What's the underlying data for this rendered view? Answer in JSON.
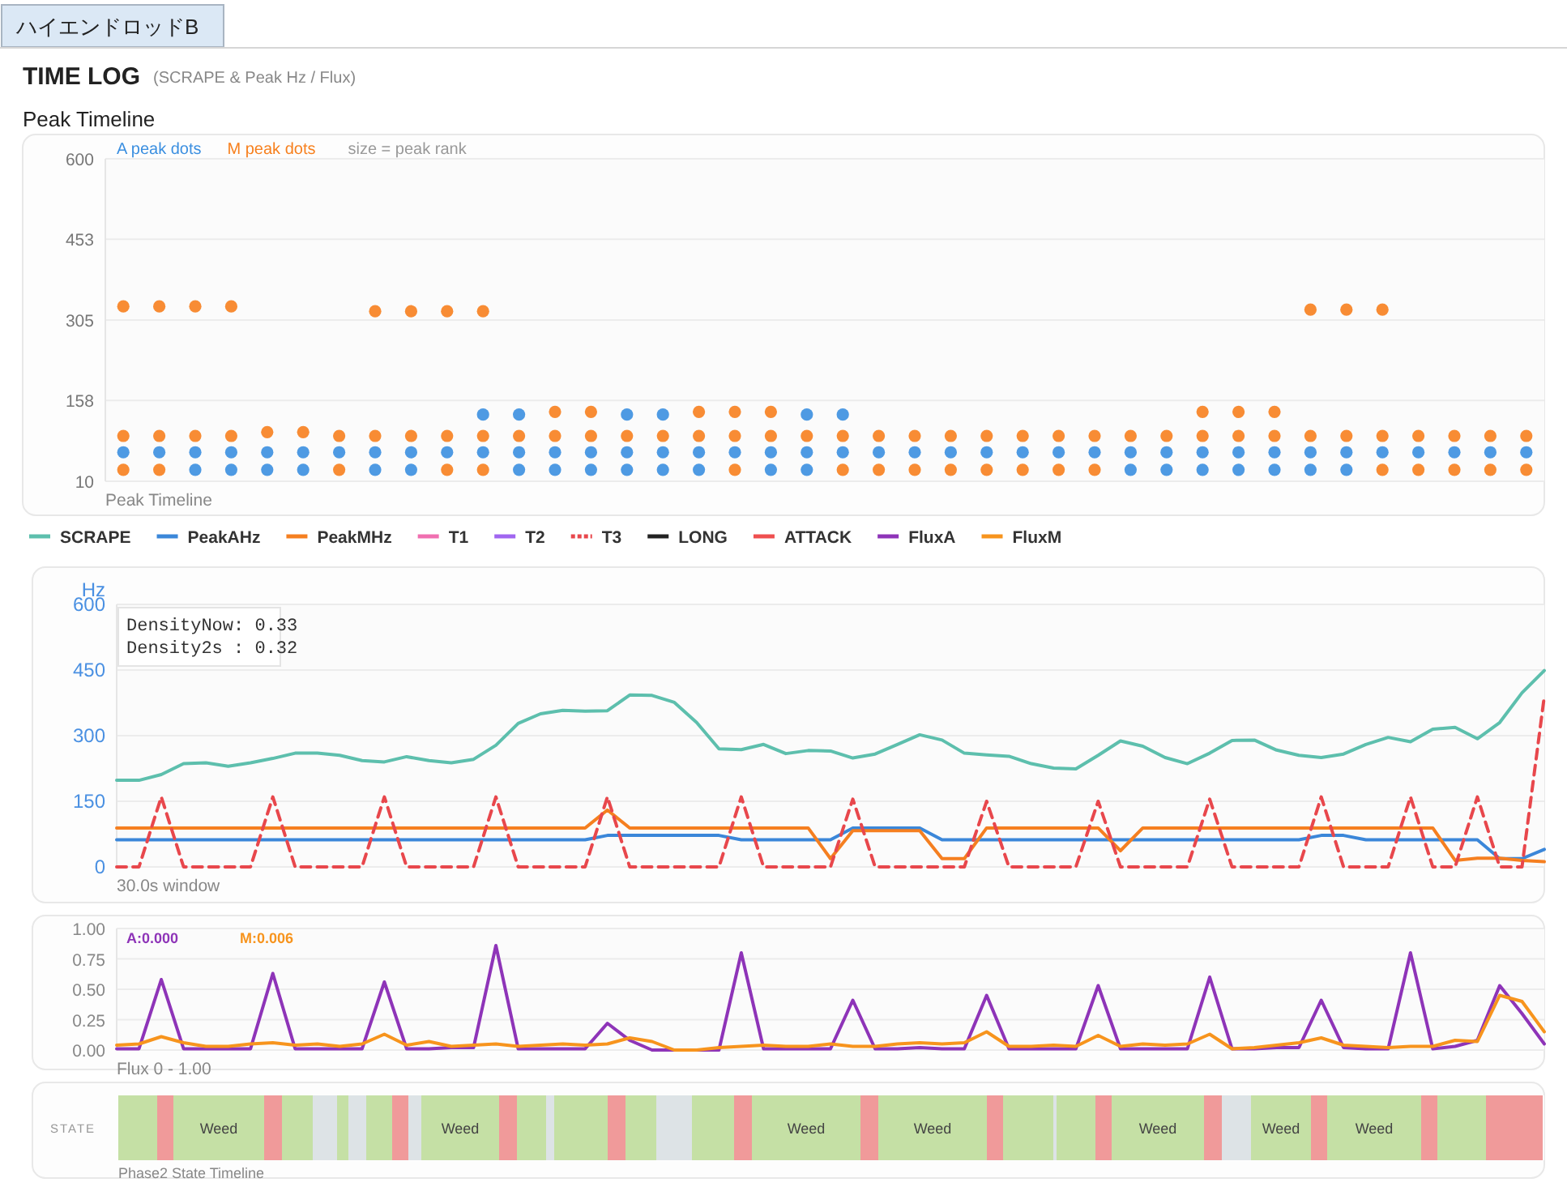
{
  "chart_data": [
    {
      "type": "scatter",
      "title": "Peak Timeline",
      "xlabel": "Peak Timeline",
      "annotations": [
        "ハイエンドロッドB",
        "TIME LOG",
        "(SCRAPE & Peak Hz / Flux)",
        "size = peak rank"
      ],
      "categories": [
        null,
        null,
        null,
        null,
        null,
        null,
        null,
        null,
        null,
        null,
        null,
        null,
        null,
        null,
        null,
        null,
        null,
        null,
        null,
        null,
        null,
        null,
        null,
        null,
        null,
        null,
        null,
        null,
        null,
        null,
        null,
        null,
        null,
        null,
        null,
        null,
        null,
        null,
        null,
        null
      ],
      "ylim": [
        10,
        600
      ],
      "yticks": [
        10,
        158,
        305,
        453,
        600
      ],
      "grid": "y",
      "legend": "top left",
      "marker": "circle",
      "tick_labels": "y",
      "series": [
        {
          "name": "A peak dots",
          "color": "#3b8fe0",
          "values": [
            63,
            63,
            63,
            63,
            63,
            63,
            63,
            63,
            63,
            63,
            63,
            63,
            63,
            63,
            63,
            63,
            63,
            63,
            63,
            63,
            63,
            63,
            63,
            63,
            63,
            63,
            63,
            63,
            63,
            63,
            63,
            63,
            63,
            63,
            63,
            63,
            63,
            63,
            63,
            63
          ]
        },
        {
          "color": "#3b8fe0",
          "values": [
            null,
            null,
            31,
            31,
            31,
            31,
            null,
            31,
            31,
            null,
            null,
            31,
            31,
            31,
            31,
            31,
            31,
            null,
            31,
            31,
            null,
            null,
            null,
            null,
            null,
            null,
            null,
            null,
            31,
            31,
            31,
            31,
            31,
            31,
            31,
            null,
            null,
            null,
            null,
            null
          ]
        },
        {
          "color": "#3b8fe0",
          "values": [
            null,
            null,
            null,
            null,
            null,
            null,
            null,
            null,
            null,
            null,
            132,
            132,
            null,
            null,
            132,
            132,
            null,
            null,
            null,
            132,
            132,
            null,
            null,
            null,
            null,
            null,
            null,
            null,
            null,
            null,
            null,
            null,
            null,
            null,
            null,
            null,
            null,
            null,
            null,
            null
          ]
        },
        {
          "name": "M peak dots",
          "color": "#f7801e",
          "values": [
            93,
            93,
            93,
            93,
            100,
            100,
            93,
            93,
            93,
            93,
            93,
            93,
            93,
            93,
            93,
            93,
            93,
            93,
            93,
            93,
            93,
            93,
            93,
            93,
            93,
            93,
            93,
            93,
            93,
            93,
            93,
            93,
            93,
            93,
            93,
            93,
            93,
            93,
            93,
            93
          ]
        },
        {
          "color": "#f7801e",
          "values": [
            31,
            31,
            null,
            null,
            null,
            null,
            31,
            null,
            null,
            31,
            31,
            null,
            null,
            null,
            null,
            null,
            null,
            31,
            null,
            null,
            31,
            31,
            31,
            31,
            31,
            31,
            31,
            31,
            null,
            null,
            null,
            null,
            null,
            null,
            null,
            31,
            31,
            31,
            31,
            31
          ]
        },
        {
          "color": "#f7801e",
          "values": [
            null,
            null,
            null,
            null,
            null,
            null,
            null,
            null,
            null,
            null,
            null,
            null,
            137,
            137,
            null,
            null,
            137,
            137,
            137,
            null,
            null,
            null,
            null,
            null,
            null,
            null,
            null,
            null,
            null,
            null,
            137,
            137,
            137,
            null,
            null,
            null,
            null,
            null,
            null,
            null
          ]
        },
        {
          "color": "#f7801e",
          "values": [
            330,
            330,
            330,
            330,
            null,
            null,
            null,
            321,
            321,
            321,
            321,
            null,
            null,
            null,
            null,
            null,
            null,
            null,
            null,
            null,
            null,
            null,
            null,
            null,
            null,
            null,
            null,
            null,
            null,
            null,
            null,
            null,
            null,
            324,
            324,
            324,
            null,
            null,
            null,
            null
          ]
        }
      ]
    },
    {
      "type": "line",
      "ylabel": "Hz",
      "xlabel": "30.0s window",
      "annotations": [
        "DensityNow: 0.33",
        "Density2s : 0.32"
      ],
      "categories": [
        null,
        null,
        null,
        null,
        null,
        null,
        null,
        null,
        null,
        null,
        null,
        null,
        null,
        null,
        null,
        null,
        null,
        null,
        null,
        null,
        null,
        null,
        null,
        null,
        null,
        null,
        null,
        null,
        null,
        null,
        null,
        null,
        null,
        null,
        null,
        null,
        null,
        null,
        null,
        null,
        null,
        null,
        null,
        null,
        null,
        null,
        null,
        null,
        null,
        null,
        null,
        null,
        null,
        null,
        null,
        null,
        null,
        null,
        null,
        null,
        null,
        null,
        null,
        null,
        null
      ],
      "ylim": [
        0,
        600
      ],
      "yticks": [
        0,
        150,
        300,
        450,
        600
      ],
      "grid": "y",
      "legend": "top",
      "tick_labels": "y",
      "line_style": "solid",
      "marker": "none",
      "series": [
        {
          "name": "SCRAPE",
          "color": "#5dbfad",
          "values": [
            198,
            198,
            211,
            236,
            238,
            230,
            238,
            248,
            260,
            260,
            255,
            243,
            240,
            252,
            243,
            238,
            246,
            278,
            328,
            350,
            358,
            356,
            357,
            393,
            392,
            376,
            330,
            270,
            268,
            280,
            259,
            266,
            265,
            249,
            258,
            280,
            302,
            290,
            260,
            256,
            253,
            236,
            226,
            224,
            255,
            288,
            276,
            250,
            236,
            260,
            289,
            290,
            267,
            255,
            250,
            258,
            280,
            296,
            286,
            315,
            319,
            293,
            330,
            398,
            449
          ]
        },
        {
          "name": "PeakAHz",
          "color": "#3b87d9",
          "values": [
            62,
            62,
            62,
            62,
            62,
            62,
            62,
            62,
            62,
            62,
            62,
            62,
            62,
            62,
            62,
            62,
            62,
            62,
            62,
            62,
            62,
            62,
            72,
            72,
            72,
            72,
            72,
            72,
            62,
            62,
            62,
            62,
            62,
            89,
            89,
            89,
            89,
            62,
            62,
            62,
            62,
            62,
            62,
            62,
            62,
            62,
            62,
            62,
            62,
            62,
            62,
            62,
            62,
            62,
            72,
            72,
            62,
            62,
            62,
            62,
            62,
            62,
            19,
            19,
            40
          ]
        },
        {
          "name": "PeakMHz",
          "color": "#f57f20",
          "values": [
            89,
            89,
            89,
            89,
            89,
            89,
            89,
            89,
            89,
            89,
            89,
            89,
            89,
            89,
            89,
            89,
            89,
            89,
            89,
            89,
            89,
            89,
            130,
            89,
            89,
            89,
            89,
            89,
            89,
            89,
            89,
            89,
            19,
            83,
            83,
            83,
            83,
            19,
            19,
            89,
            89,
            89,
            89,
            89,
            89,
            37,
            89,
            89,
            89,
            89,
            89,
            89,
            89,
            89,
            89,
            89,
            89,
            89,
            89,
            89,
            15,
            20,
            20,
            15,
            12
          ]
        },
        {
          "name": "T1",
          "color": "#f06fb0",
          "values": [
            null,
            null,
            null,
            null,
            null,
            null,
            null,
            null,
            null,
            null,
            null,
            null,
            null,
            null,
            null,
            null,
            null,
            null,
            null,
            null,
            null,
            null,
            null,
            null,
            null,
            null,
            null,
            null,
            null,
            null,
            null,
            null,
            null,
            null,
            null,
            null,
            null,
            null,
            null,
            null,
            null,
            null,
            null,
            null,
            null,
            null,
            null,
            null,
            null,
            null,
            null,
            null,
            null,
            null,
            null,
            null,
            null,
            null,
            null,
            null,
            null,
            null,
            null,
            null,
            null
          ]
        },
        {
          "name": "T2",
          "color": "#a066f0",
          "values": [
            null,
            null,
            null,
            null,
            null,
            null,
            null,
            null,
            null,
            null,
            null,
            null,
            null,
            null,
            null,
            null,
            null,
            null,
            null,
            null,
            null,
            null,
            null,
            null,
            null,
            null,
            null,
            null,
            null,
            null,
            null,
            null,
            null,
            null,
            null,
            null,
            null,
            null,
            null,
            null,
            null,
            null,
            null,
            null,
            null,
            null,
            null,
            null,
            null,
            null,
            null,
            null,
            null,
            null,
            null,
            null,
            null,
            null,
            null,
            null,
            null,
            null,
            null,
            null,
            null
          ]
        },
        {
          "name": "T3",
          "color": "#e8474c",
          "line_style": "dashed",
          "values": [
            0,
            0,
            160,
            0,
            0,
            0,
            0,
            160,
            0,
            0,
            0,
            0,
            160,
            0,
            0,
            0,
            0,
            160,
            0,
            0,
            0,
            0,
            160,
            0,
            0,
            0,
            0,
            0,
            160,
            0,
            0,
            0,
            0,
            155,
            0,
            0,
            0,
            0,
            0,
            150,
            0,
            0,
            0,
            0,
            150,
            0,
            0,
            0,
            0,
            155,
            0,
            0,
            0,
            0,
            160,
            0,
            0,
            0,
            160,
            0,
            0,
            160,
            0,
            0,
            390
          ]
        },
        {
          "name": "LONG",
          "color": "#222222",
          "values": [
            null,
            null,
            null,
            null,
            null,
            null,
            null,
            null,
            null,
            null,
            null,
            null,
            null,
            null,
            null,
            null,
            null,
            null,
            null,
            null,
            null,
            null,
            null,
            null,
            null,
            null,
            null,
            null,
            null,
            null,
            null,
            null,
            null,
            null,
            null,
            null,
            null,
            null,
            null,
            null,
            null,
            null,
            null,
            null,
            null,
            null,
            null,
            null,
            null,
            null,
            null,
            null,
            null,
            null,
            null,
            null,
            null,
            null,
            null,
            null,
            null,
            null,
            null,
            null,
            null
          ]
        },
        {
          "name": "ATTACK",
          "color": "#ef4f4f",
          "values": [
            null,
            null,
            null,
            null,
            null,
            null,
            null,
            null,
            null,
            null,
            null,
            null,
            null,
            null,
            null,
            null,
            null,
            null,
            null,
            null,
            null,
            null,
            null,
            null,
            null,
            null,
            null,
            null,
            null,
            null,
            null,
            null,
            null,
            null,
            null,
            null,
            null,
            null,
            null,
            null,
            null,
            null,
            null,
            null,
            null,
            null,
            null,
            null,
            null,
            null,
            null,
            null,
            null,
            null,
            null,
            null,
            null,
            null,
            null,
            null,
            null,
            null,
            null,
            null,
            null
          ]
        }
      ]
    },
    {
      "type": "line",
      "xlabel": "Flux 0 - 1.00",
      "annotations": [
        "A:0.000",
        "M:0.006"
      ],
      "categories": [
        null,
        null,
        null,
        null,
        null,
        null,
        null,
        null,
        null,
        null,
        null,
        null,
        null,
        null,
        null,
        null,
        null,
        null,
        null,
        null,
        null,
        null,
        null,
        null,
        null,
        null,
        null,
        null,
        null,
        null,
        null,
        null,
        null,
        null,
        null,
        null,
        null,
        null,
        null,
        null,
        null,
        null,
        null,
        null,
        null,
        null,
        null,
        null,
        null,
        null,
        null,
        null,
        null,
        null,
        null,
        null,
        null,
        null,
        null,
        null,
        null,
        null,
        null,
        null,
        null
      ],
      "ylim": [
        0,
        1
      ],
      "yticks": [
        {
          "value": 0,
          "label": "0.00"
        },
        {
          "value": 0.25,
          "label": "0.25"
        },
        {
          "value": 0.5,
          "label": "0.50"
        },
        {
          "value": 0.75,
          "label": "0.75"
        },
        {
          "value": 1,
          "label": "1.00"
        }
      ],
      "grid": "y",
      "legend": "top",
      "tick_labels": "y",
      "marker": "none",
      "series": [
        {
          "name": "FluxA",
          "color": "#8e34b8",
          "values": [
            0.01,
            0.01,
            0.58,
            0.01,
            0.01,
            0.01,
            0.01,
            0.63,
            0.01,
            0.01,
            0.01,
            0.01,
            0.56,
            0.01,
            0.01,
            0.02,
            0.02,
            0.86,
            0.01,
            0.01,
            0.01,
            0.01,
            0.22,
            0.08,
            0.0,
            0.0,
            0.0,
            0.0,
            0.8,
            0.01,
            0.01,
            0.01,
            0.01,
            0.41,
            0.01,
            0.01,
            0.02,
            0.01,
            0.01,
            0.45,
            0.01,
            0.01,
            0.01,
            0.01,
            0.53,
            0.01,
            0.01,
            0.01,
            0.01,
            0.6,
            0.01,
            0.01,
            0.02,
            0.02,
            0.41,
            0.02,
            0.01,
            0.01,
            0.8,
            0.01,
            0.03,
            0.08,
            0.53,
            0.3,
            0.05
          ]
        },
        {
          "name": "FluxM",
          "color": "#f7941d",
          "values": [
            0.04,
            0.05,
            0.11,
            0.06,
            0.03,
            0.03,
            0.05,
            0.06,
            0.04,
            0.05,
            0.03,
            0.05,
            0.13,
            0.04,
            0.07,
            0.03,
            0.04,
            0.05,
            0.03,
            0.04,
            0.05,
            0.04,
            0.05,
            0.1,
            0.07,
            0.0,
            0.0,
            0.02,
            0.03,
            0.04,
            0.03,
            0.03,
            0.05,
            0.03,
            0.03,
            0.05,
            0.06,
            0.05,
            0.06,
            0.15,
            0.03,
            0.03,
            0.04,
            0.03,
            0.12,
            0.03,
            0.05,
            0.04,
            0.05,
            0.13,
            0.01,
            0.02,
            0.04,
            0.06,
            0.1,
            0.04,
            0.03,
            0.02,
            0.03,
            0.03,
            0.08,
            0.07,
            0.45,
            0.4,
            0.15
          ]
        }
      ]
    },
    {
      "type": "other",
      "ylabel": "STATE",
      "xlabel": "Phase2 State Timeline",
      "annotations": [
        "Weed",
        "Weed",
        "Weed",
        "Weed",
        "Weed",
        "Weed",
        "Weed"
      ]
    }
  ]
}
